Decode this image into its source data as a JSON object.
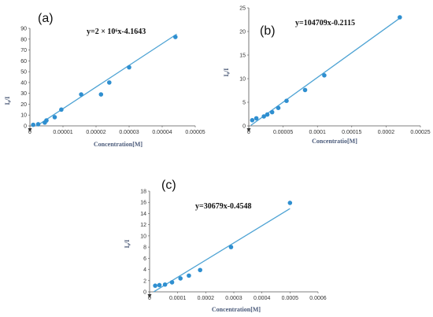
{
  "colors": {
    "line": "#4ea3d4",
    "marker": "#2f8fd0",
    "axis": "#555555"
  },
  "chart_data": [
    {
      "type": "scatter",
      "panel_label": "(a)",
      "equation": "y=2 × 10⁶x-4.1643",
      "xlabel": "Concentration[M]",
      "ylabel": "I₀/I",
      "xlim": [
        0,
        5e-05
      ],
      "ylim": [
        0,
        90
      ],
      "xticks": [
        0,
        1e-05,
        2e-05,
        3e-05,
        4e-05,
        5e-05
      ],
      "xtick_labels": [
        "0",
        "0.00001",
        "0.00002",
        "0.00003",
        "0.00004",
        "0.00005"
      ],
      "yticks": [
        0,
        10,
        20,
        30,
        40,
        50,
        60,
        70,
        80,
        90
      ],
      "ytick_labels": [
        "0",
        "10",
        "20",
        "30",
        "40",
        "50",
        "60",
        "70",
        "80",
        "90"
      ],
      "points": [
        [
          1e-06,
          1
        ],
        [
          2.5e-06,
          1.5
        ],
        [
          4.5e-06,
          3
        ],
        [
          5e-06,
          5
        ],
        [
          7.5e-06,
          8
        ],
        [
          9.5e-06,
          15
        ],
        [
          1.55e-05,
          29
        ],
        [
          2.15e-05,
          29
        ],
        [
          2.4e-05,
          40
        ],
        [
          3e-05,
          54
        ],
        [
          4.4e-05,
          82
        ]
      ],
      "trend": {
        "slope": 2000000,
        "intercept": -4.1643,
        "x_range": [
          2e-06,
          4.44e-05
        ]
      }
    },
    {
      "type": "scatter",
      "panel_label": "(b)",
      "equation": "y=104709x-0.2115",
      "xlabel": "Concentratio[M]",
      "ylabel": "I₀/I",
      "xlim": [
        0,
        0.00025
      ],
      "ylim": [
        0,
        25
      ],
      "xticks": [
        0,
        5e-05,
        0.0001,
        0.00015,
        0.0002,
        0.00025
      ],
      "xtick_labels": [
        "0",
        "0.00005",
        "0.0001",
        "0.00015",
        "0.0002",
        "0.00025"
      ],
      "yticks": [
        0,
        5,
        10,
        15,
        20,
        25
      ],
      "ytick_labels": [
        "0",
        "5",
        "10",
        "15",
        "20",
        "25"
      ],
      "points": [
        [
          5e-06,
          1.2
        ],
        [
          1.1e-05,
          1.6
        ],
        [
          2.2e-05,
          2
        ],
        [
          2.7e-05,
          2.4
        ],
        [
          3.4e-05,
          2.9
        ],
        [
          4.3e-05,
          3.8
        ],
        [
          5.5e-05,
          5.3
        ],
        [
          8.2e-05,
          7.6
        ],
        [
          0.00011,
          10.7
        ],
        [
          0.00022,
          23
        ]
      ],
      "trend": {
        "slope": 104709,
        "intercept": -0.2115,
        "x_range": [
          3e-06,
          0.00022
        ]
      }
    },
    {
      "type": "scatter",
      "panel_label": "(c)",
      "equation": "y=30679x-0.4548",
      "xlabel": "Concentration[M]",
      "ylabel": "I₀/I",
      "xlim": [
        0,
        0.0006
      ],
      "ylim": [
        0,
        18
      ],
      "xticks": [
        0,
        0.0001,
        0.0002,
        0.0003,
        0.0004,
        0.0005,
        0.0006
      ],
      "xtick_labels": [
        "0",
        "0.0001",
        "0.0002",
        "0.0003",
        "0.0004",
        "0.0005",
        "0.0006"
      ],
      "yticks": [
        0,
        2,
        4,
        6,
        8,
        10,
        12,
        14,
        16,
        18
      ],
      "ytick_labels": [
        "0",
        "2",
        "4",
        "6",
        "8",
        "10",
        "12",
        "14",
        "16",
        "18"
      ],
      "points": [
        [
          2e-05,
          1.1
        ],
        [
          3.5e-05,
          1.2
        ],
        [
          5.5e-05,
          1.3
        ],
        [
          8e-05,
          1.7
        ],
        [
          0.00011,
          2.4
        ],
        [
          0.00014,
          2.9
        ],
        [
          0.00018,
          3.9
        ],
        [
          0.00029,
          8
        ],
        [
          0.0005,
          15.9
        ]
      ],
      "trend": {
        "slope": 30679,
        "intercept": -0.4548,
        "x_range": [
          1.5e-05,
          0.0005
        ]
      }
    }
  ]
}
